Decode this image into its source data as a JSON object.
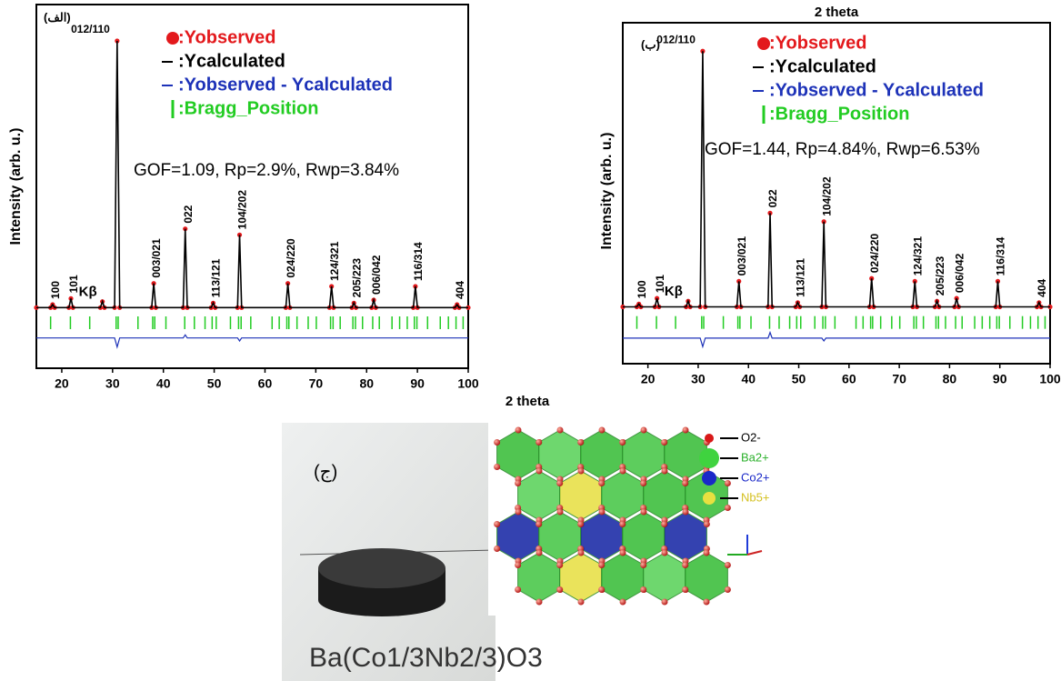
{
  "chart_data": [
    {
      "type": "line",
      "label": "(الف)",
      "annotation": "GOF=1.09, Rp=2.9%, Rwp=3.84%",
      "ylabel": "Intensity (arb. u.)",
      "xlabel": "2 theta",
      "xlim": [
        15,
        100
      ],
      "xticks": [
        20,
        30,
        40,
        50,
        60,
        70,
        80,
        90,
        100
      ],
      "ylim": [
        -20,
        100
      ],
      "x": [
        15,
        17.8,
        18.2,
        18.6,
        21.4,
        21.8,
        22.2,
        27.6,
        28,
        28.4,
        30.4,
        30.9,
        31.4,
        37.7,
        38.1,
        38.5,
        43.9,
        44.3,
        44.7,
        49.4,
        49.8,
        50.2,
        54.6,
        55,
        55.4,
        64.1,
        64.5,
        64.9,
        72.7,
        73.1,
        73.5,
        77.1,
        77.5,
        77.9,
        81,
        81.4,
        81.8,
        89.2,
        89.6,
        90,
        97.4,
        97.8,
        98.2,
        100
      ],
      "series": [
        {
          "name": ":Yobserved",
          "color": "#e3191c",
          "marker": "circle",
          "values": [
            0,
            0,
            1,
            0,
            0,
            3,
            0,
            0,
            2,
            0,
            0,
            88,
            0,
            0,
            8,
            0,
            0,
            26,
            0,
            0,
            1.5,
            0,
            0,
            24,
            0,
            0,
            8,
            0,
            0,
            7,
            0,
            0,
            1.5,
            0,
            0,
            2.5,
            0,
            0,
            7,
            0,
            0,
            1,
            0,
            0
          ]
        },
        {
          "name": ":Ycalculated",
          "color": "#000000",
          "values": [
            0,
            0,
            1,
            0,
            0,
            3,
            0,
            0,
            2,
            0,
            0,
            88,
            0,
            0,
            8,
            0,
            0,
            26,
            0,
            0,
            1.5,
            0,
            0,
            24,
            0,
            0,
            8,
            0,
            0,
            7,
            0,
            0,
            1.5,
            0,
            0,
            2.5,
            0,
            0,
            7,
            0,
            0,
            1,
            0,
            0
          ]
        },
        {
          "name": ":Yobserved - Ycalculated",
          "color": "#1d32b8",
          "values": [
            -10,
            -10,
            -10,
            -10,
            -10,
            -10,
            -10,
            -10,
            -10,
            -10,
            -10,
            -13,
            -10,
            -10,
            -10,
            -10,
            -10,
            -9,
            -10,
            -10,
            -10,
            -10,
            -10,
            -11,
            -10,
            -10,
            -10,
            -10,
            -10,
            -10,
            -10,
            -10,
            -10,
            -10,
            -10,
            -10,
            -10,
            -10,
            -10,
            -10,
            -10,
            -10,
            -10,
            -10
          ]
        },
        {
          "name": ":Bragg_Position",
          "color": "#22cc22",
          "marker": "tick",
          "x": [
            17.8,
            21.7,
            25.5,
            30.7,
            31.1,
            35,
            37.9,
            38.3,
            40.5,
            44.2,
            46.1,
            48.2,
            49.6,
            50.4,
            53.2,
            54.8,
            55.3,
            57.2,
            61.4,
            62.8,
            64.3,
            64.7,
            66.3,
            68.5,
            70.1,
            72.9,
            73.4,
            74.8,
            77.3,
            77.8,
            79.2,
            81.2,
            82.5,
            85,
            86.5,
            88,
            89.4,
            89.9,
            92,
            94.5,
            96.1,
            97.6,
            99
          ],
          "values": [
            -5,
            -5,
            -5,
            -5,
            -5,
            -5,
            -5,
            -5,
            -5,
            -5,
            -5,
            -5,
            -5,
            -5,
            -5,
            -5,
            -5,
            -5,
            -5,
            -5,
            -5,
            -5,
            -5,
            -5,
            -5,
            -5,
            -5,
            -5,
            -5,
            -5,
            -5,
            -5,
            -5,
            -5,
            -5,
            -5,
            -5,
            -5,
            -5,
            -5,
            -5,
            -5,
            -5
          ]
        }
      ],
      "peak_labels": [
        {
          "text": "100",
          "x": 18.2
        },
        {
          "text": "101",
          "x": 21.8
        },
        {
          "text": "Kβ",
          "x": 28
        },
        {
          "text": "012/110",
          "x": 30.9
        },
        {
          "text": "003/021",
          "x": 38.1
        },
        {
          "text": "022",
          "x": 44.3
        },
        {
          "text": "113/121",
          "x": 49.8
        },
        {
          "text": "104/202",
          "x": 55
        },
        {
          "text": "024/220",
          "x": 64.5
        },
        {
          "text": "124/321",
          "x": 73.1
        },
        {
          "text": "205/223",
          "x": 77.5
        },
        {
          "text": "006/042",
          "x": 81.4
        },
        {
          "text": "116/314",
          "x": 89.6
        },
        {
          "text": "404",
          "x": 97.8
        }
      ]
    },
    {
      "type": "line",
      "label": "(ب)",
      "annotation": "GOF=1.44, Rp=4.84%, Rwp=6.53%",
      "ylabel": "Intensity (arb. u.)",
      "xlabel": "2 theta",
      "xlim": [
        15,
        100
      ],
      "xticks": [
        20,
        30,
        40,
        50,
        60,
        70,
        80,
        90,
        100
      ],
      "ylim": [
        -20,
        100
      ],
      "x": [
        15,
        17.8,
        18.2,
        18.6,
        21.4,
        21.8,
        22.2,
        27.6,
        28,
        28.4,
        30.4,
        30.9,
        31.4,
        37.7,
        38.1,
        38.5,
        43.9,
        44.3,
        44.7,
        49.4,
        49.8,
        50.2,
        54.6,
        55,
        55.4,
        64.1,
        64.5,
        64.9,
        72.7,
        73.1,
        73.5,
        77.1,
        77.5,
        77.9,
        81,
        81.4,
        81.8,
        89.2,
        89.6,
        90,
        97.4,
        97.8,
        98.2,
        100
      ],
      "series": [
        {
          "name": ":Yobserved",
          "color": "#e3191c",
          "marker": "circle",
          "values": [
            0,
            0,
            1,
            0,
            0,
            3,
            0,
            0,
            2,
            0,
            0,
            90,
            0,
            0,
            9,
            0,
            0,
            33,
            0,
            0,
            1.5,
            0,
            0,
            30,
            0,
            0,
            10,
            0,
            0,
            9,
            0,
            0,
            2,
            0,
            0,
            3,
            0,
            0,
            9,
            0,
            0,
            1.5,
            0,
            0
          ]
        },
        {
          "name": ":Ycalculated",
          "color": "#000000",
          "values": [
            0,
            0,
            1,
            0,
            0,
            3,
            0,
            0,
            2,
            0,
            0,
            90,
            0,
            0,
            9,
            0,
            0,
            33,
            0,
            0,
            1.5,
            0,
            0,
            30,
            0,
            0,
            10,
            0,
            0,
            9,
            0,
            0,
            2,
            0,
            0,
            3,
            0,
            0,
            9,
            0,
            0,
            1.5,
            0,
            0
          ]
        },
        {
          "name": ":Yobserved - Ycalculated",
          "color": "#1d32b8",
          "values": [
            -11,
            -11,
            -11,
            -11,
            -11,
            -11,
            -11,
            -11,
            -11,
            -11,
            -11,
            -14,
            -11,
            -11,
            -11,
            -11,
            -11,
            -9,
            -11,
            -11,
            -11,
            -11,
            -11,
            -12,
            -11,
            -11,
            -11,
            -11,
            -11,
            -11,
            -11,
            -11,
            -11,
            -11,
            -11,
            -11,
            -11,
            -11,
            -11,
            -11,
            -11,
            -11,
            -11,
            -11
          ]
        },
        {
          "name": ":Bragg_Position",
          "color": "#22cc22",
          "marker": "tick",
          "x": [
            17.8,
            21.7,
            25.5,
            30.7,
            31.1,
            35,
            37.9,
            38.3,
            40.5,
            44.2,
            46.1,
            48.2,
            49.6,
            50.4,
            53.2,
            54.8,
            55.3,
            57.2,
            61.4,
            62.8,
            64.3,
            64.7,
            66.3,
            68.5,
            70.1,
            72.9,
            73.4,
            74.8,
            77.3,
            77.8,
            79.2,
            81.2,
            82.5,
            85,
            86.5,
            88,
            89.4,
            89.9,
            92,
            94.5,
            96.1,
            97.6,
            99
          ],
          "values": [
            -5.5,
            -5.5,
            -5.5,
            -5.5,
            -5.5,
            -5.5,
            -5.5,
            -5.5,
            -5.5,
            -5.5,
            -5.5,
            -5.5,
            -5.5,
            -5.5,
            -5.5,
            -5.5,
            -5.5,
            -5.5,
            -5.5,
            -5.5,
            -5.5,
            -5.5,
            -5.5,
            -5.5,
            -5.5,
            -5.5,
            -5.5,
            -5.5,
            -5.5,
            -5.5,
            -5.5,
            -5.5,
            -5.5,
            -5.5,
            -5.5,
            -5.5,
            -5.5,
            -5.5,
            -5.5,
            -5.5,
            -5.5,
            -5.5,
            -5.5
          ]
        }
      ],
      "peak_labels": [
        {
          "text": "100",
          "x": 18.2
        },
        {
          "text": "101",
          "x": 21.8
        },
        {
          "text": "Kβ",
          "x": 28
        },
        {
          "text": "012/110",
          "x": 30.9
        },
        {
          "text": "003/021",
          "x": 38.1
        },
        {
          "text": "022",
          "x": 44.3
        },
        {
          "text": "113/121",
          "x": 49.8
        },
        {
          "text": "104/202",
          "x": 55
        },
        {
          "text": "024/220",
          "x": 64.5
        },
        {
          "text": "124/321",
          "x": 73.1
        },
        {
          "text": "205/223",
          "x": 77.5
        },
        {
          "text": "006/042",
          "x": 81.4
        },
        {
          "text": "116/314",
          "x": 89.6
        },
        {
          "text": "404",
          "x": 97.8
        }
      ]
    }
  ],
  "figure_c": {
    "label": "(ج)",
    "caption": "Ba(Co1/3Nb2/3)O3",
    "legend": [
      "O2-",
      "Ba2+",
      "Co2+",
      "Nb5+"
    ]
  }
}
